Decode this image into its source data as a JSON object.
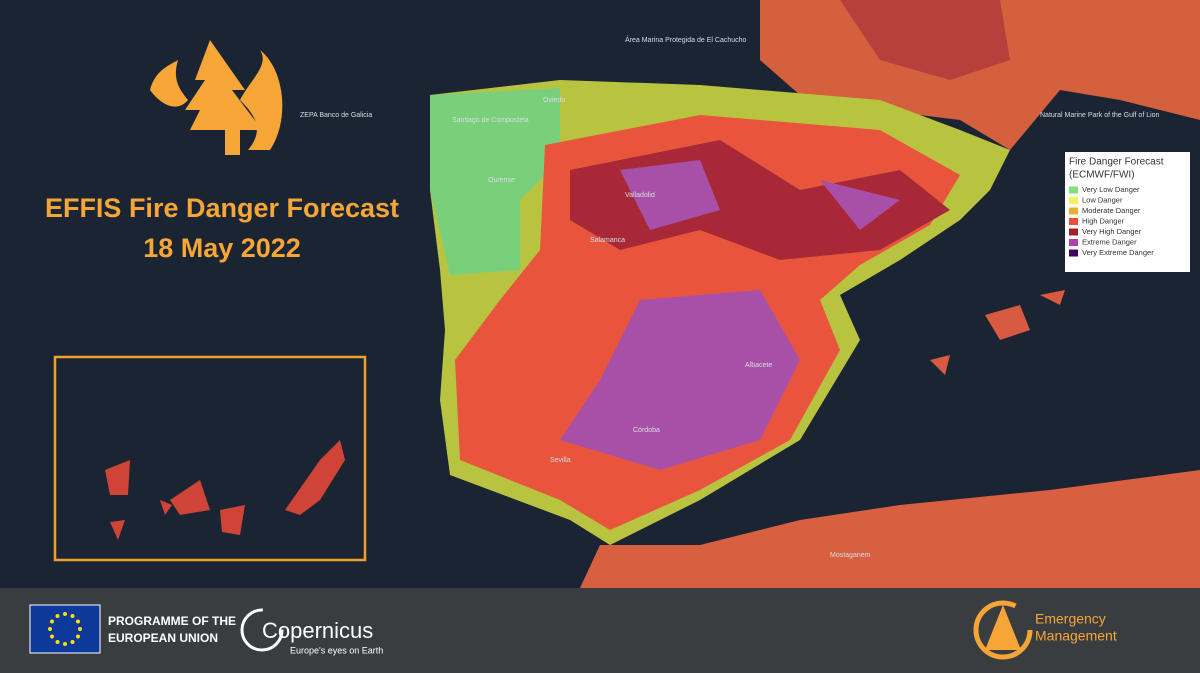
{
  "header": {
    "title": "EFFIS Fire Danger Forecast",
    "date": "18 May 2022"
  },
  "legend": {
    "title_lines": [
      "Fire Danger Forecast",
      "(ECMWF/FWI)"
    ],
    "items": [
      {
        "label": "Very Low Danger",
        "color": "#7fe07f"
      },
      {
        "label": "Low Danger",
        "color": "#f2f25a"
      },
      {
        "label": "Moderate Danger",
        "color": "#e8b030"
      },
      {
        "label": "High Danger",
        "color": "#e8503c"
      },
      {
        "label": "Very High Danger",
        "color": "#a0202c"
      },
      {
        "label": "Extreme Danger",
        "color": "#b040b0"
      },
      {
        "label": "Very Extreme Danger",
        "color": "#400060"
      }
    ]
  },
  "map_labels": [
    "ZEPA Banco de Galicia",
    "Área Marina Protegida de El Cachucho",
    "Natural Marine Park of the Gulf of Lion",
    "Santiago de Compostela",
    "Oviedo",
    "Ourense",
    "Valladolid",
    "Salamanca",
    "Albacete",
    "Córdoba",
    "Sevilla",
    "Mostaganem"
  ],
  "footer": {
    "eu_lines": [
      "PROGRAMME OF THE",
      "EUROPEAN UNION"
    ],
    "copernicus": "Copernicus",
    "copernicus_tagline": "Europe's eyes on Earth",
    "ems_lines": [
      "Emergency",
      "Management"
    ]
  }
}
